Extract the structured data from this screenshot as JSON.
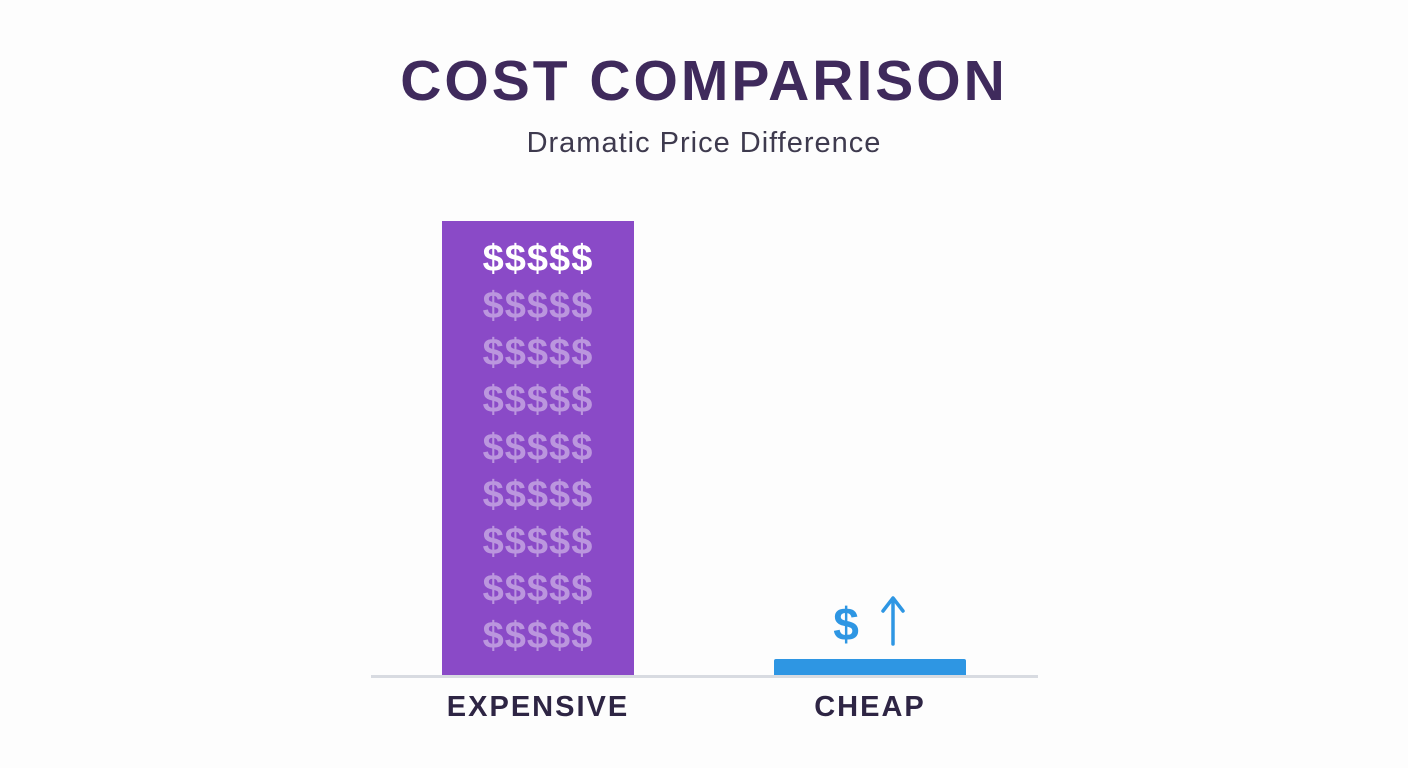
{
  "page": {
    "title": "COST COMPARISON",
    "subtitle": "Dramatic Price Difference"
  },
  "chart_data": {
    "type": "bar",
    "title": "COST COMPARISON",
    "subtitle": "Dramatic Price Difference",
    "categories": [
      "EXPENSIVE",
      "CHEAP"
    ],
    "values": [
      27,
      1
    ],
    "value_scale": "relative-height",
    "xlabel": "",
    "ylabel": "",
    "ylim": [
      0,
      30
    ],
    "grid": false,
    "legend": "none",
    "bar_colors": [
      "#8a4ac7",
      "#2e96e3"
    ],
    "annotations": [
      {
        "target": "EXPENSIVE",
        "text": "9 rows of $$$$$ inside bar, top row bright white, lower rows faded"
      },
      {
        "target": "CHEAP",
        "text": "$ with upward arrow above bar"
      }
    ]
  },
  "expensive_bar": {
    "label": "EXPENSIVE",
    "color": "#8a4ac7",
    "dollar_rows": [
      "$$$$$",
      "$$$$$",
      "$$$$$",
      "$$$$$",
      "$$$$$",
      "$$$$$",
      "$$$$$",
      "$$$$$",
      "$$$$$"
    ]
  },
  "cheap_bar": {
    "label": "CHEAP",
    "color": "#2e96e3",
    "dollar": "$",
    "arrow_icon": "up-arrow"
  },
  "colors": {
    "title_text": "#3f2a5c",
    "subtitle_text": "#3e3a4e",
    "label_text": "#2e2544",
    "baseline": "#d8dbe1",
    "background": "#fdfdfd",
    "expensive_bar": "#8a4ac7",
    "cheap_bar": "#2e96e3",
    "dollar_bright": "#ffffff"
  }
}
